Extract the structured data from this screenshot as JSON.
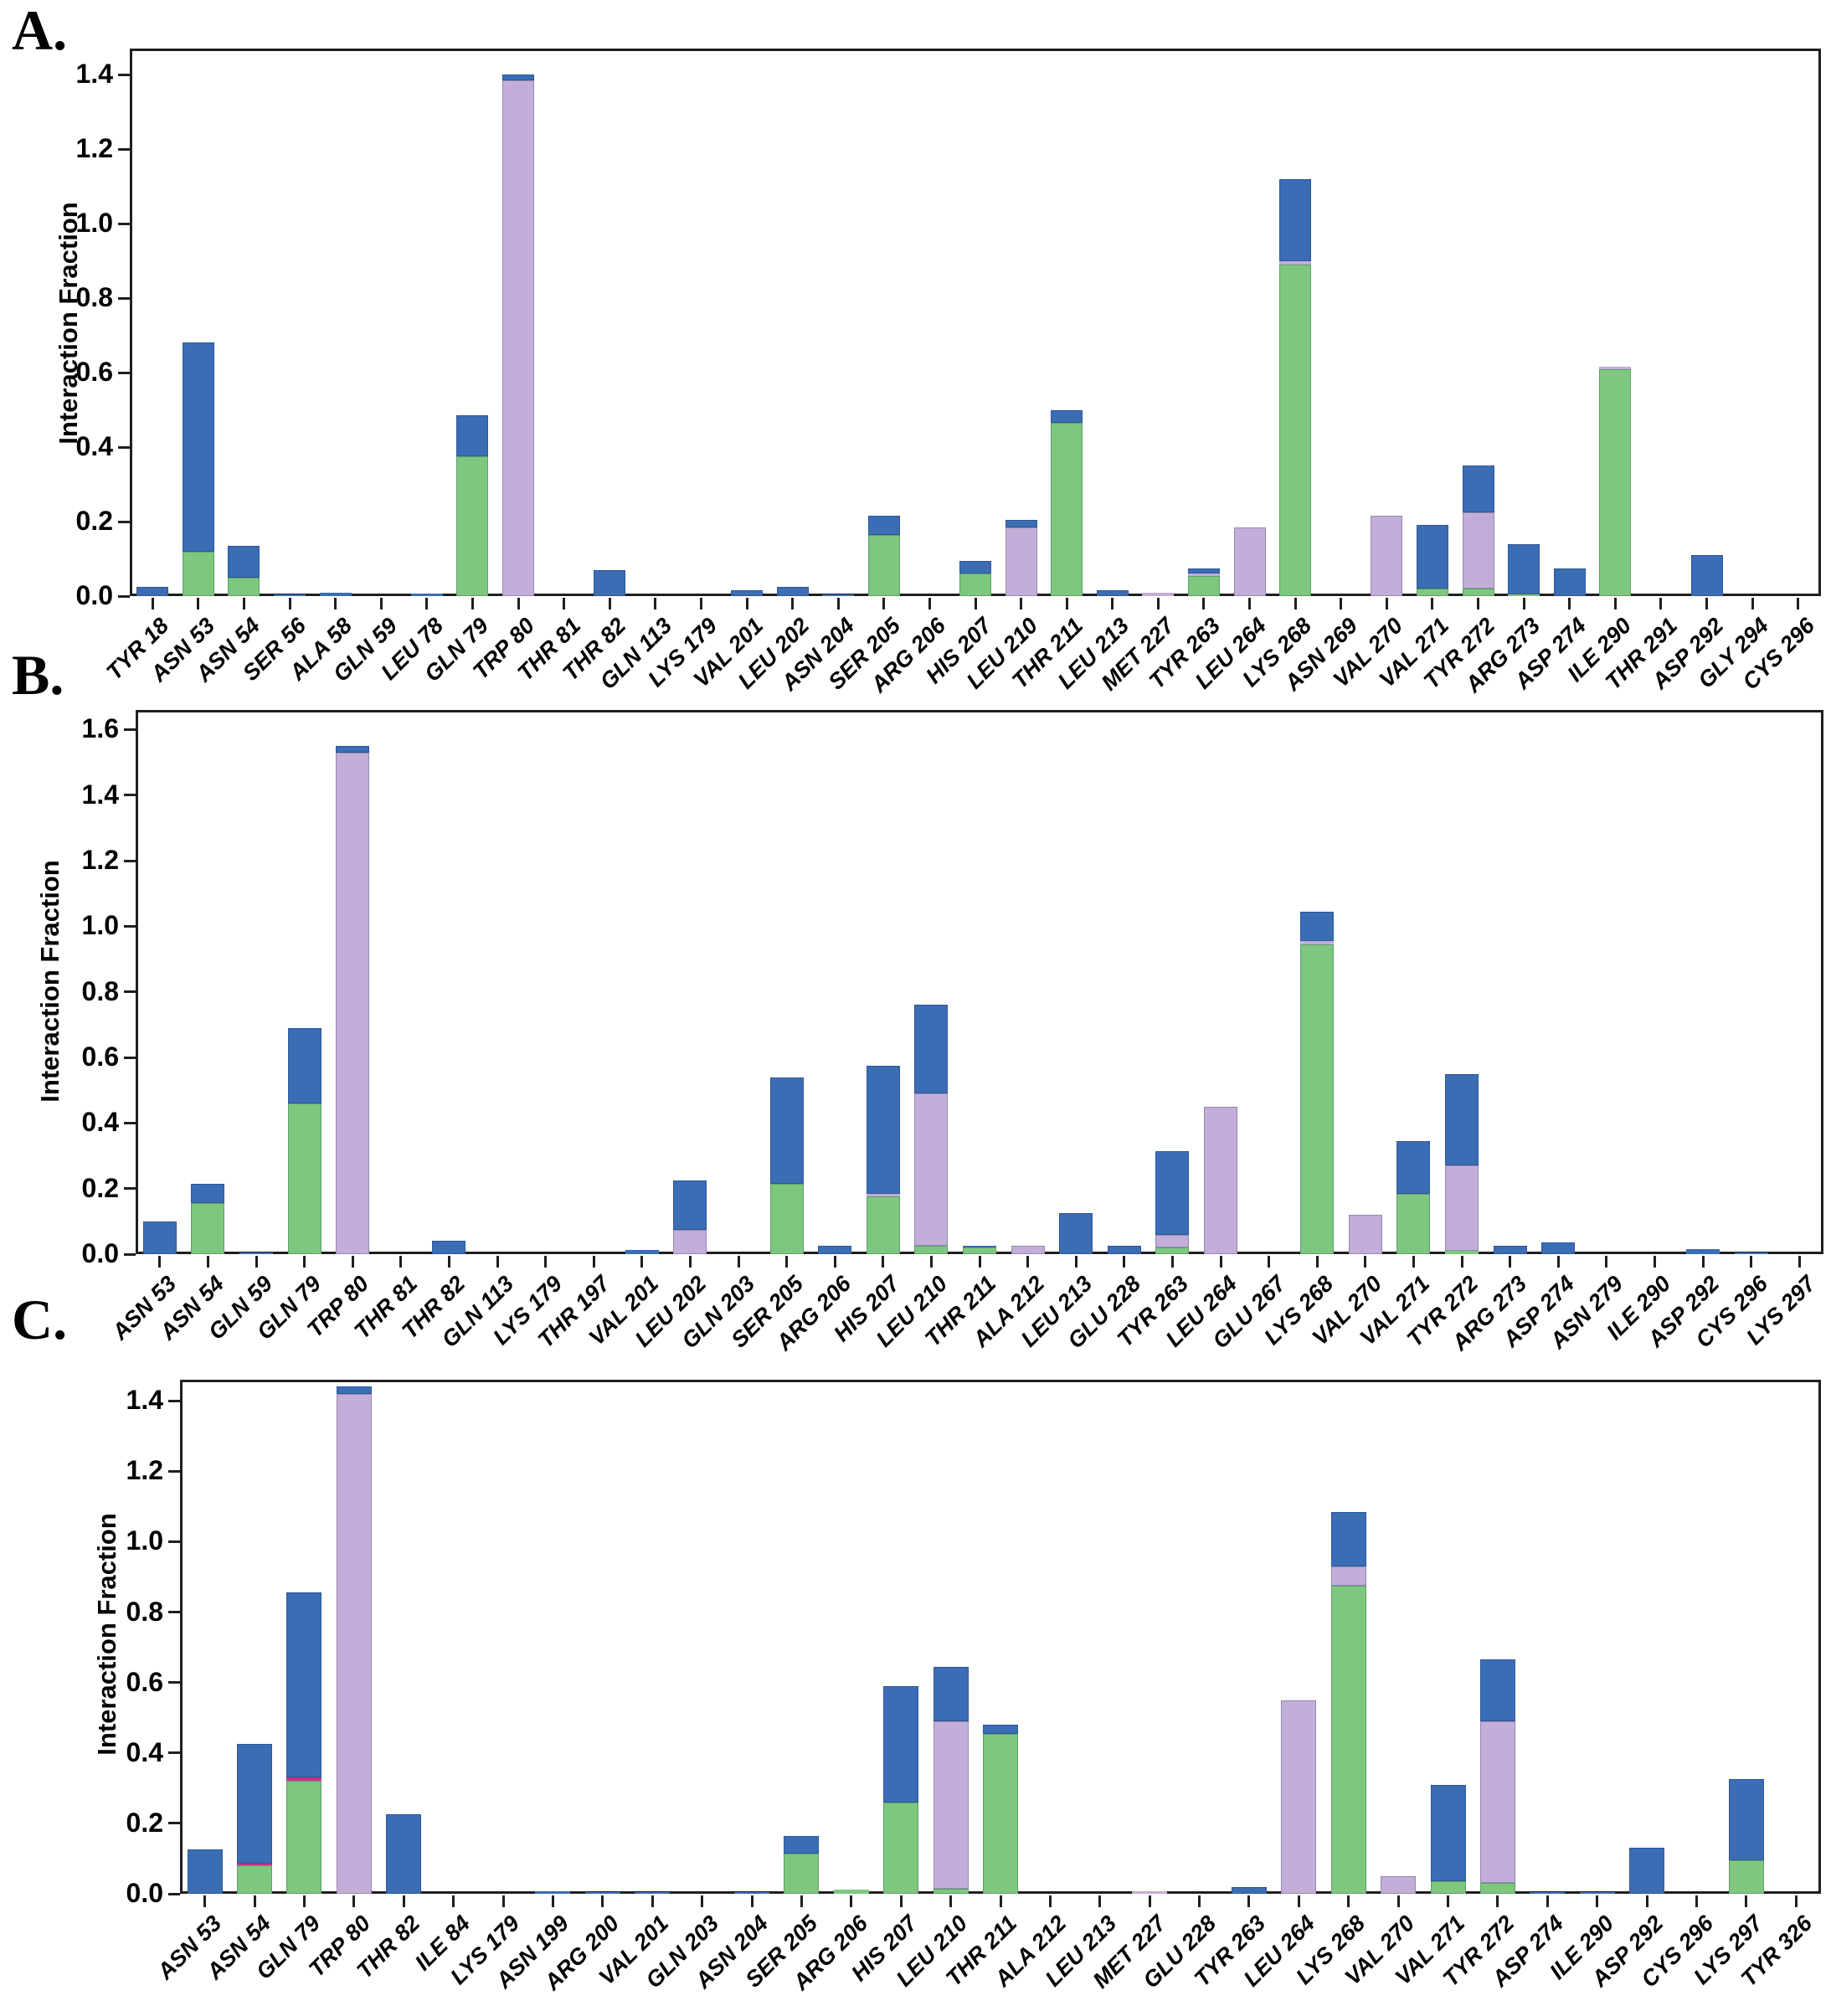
{
  "figure": {
    "ylabel": "Interaction Fraction",
    "colors": {
      "blue": "#3a6db4",
      "green": "#7dc87e",
      "lavender": "#c2aed8",
      "magenta": "#cc2e8e"
    }
  },
  "chart_data": [
    {
      "type": "bar",
      "stacked": true,
      "panel_label": "A.",
      "ylabel": "Interaction Fraction",
      "ylim": [
        0,
        1.47
      ],
      "yticks": [
        "0.0",
        "0.2",
        "0.4",
        "0.6",
        "0.8",
        "1.0",
        "1.2",
        "1.4"
      ],
      "grid": false,
      "legend": "none",
      "categories": [
        "TYR 18",
        "ASN 53",
        "ASN 54",
        "SER 56",
        "ALA 58",
        "GLN 59",
        "LEU 78",
        "GLN 79",
        "TRP 80",
        "THR 81",
        "THR 82",
        "GLN 113",
        "LYS 179",
        "VAL 201",
        "LEU 202",
        "ASN 204",
        "SER 205",
        "ARG 206",
        "HIS 207",
        "LEU 210",
        "THR 211",
        "LEU 213",
        "MET 227",
        "TYR 263",
        "LEU 264",
        "LYS 268",
        "ASN 269",
        "VAL 270",
        "VAL 271",
        "TYR 272",
        "ARG 273",
        "ASP 274",
        "ILE 290",
        "THR 291",
        "ASP 292",
        "GLY 294",
        "CYS 296"
      ],
      "series": [
        {
          "name": "green",
          "color": "#7dc87e",
          "values": [
            0,
            0.12,
            0.05,
            0,
            0,
            0,
            0,
            0.375,
            0,
            0,
            0,
            0,
            0,
            0,
            0,
            0,
            0.165,
            0,
            0.06,
            0,
            0.465,
            0,
            0,
            0.055,
            0,
            0.89,
            0,
            0,
            0.02,
            0.02,
            0.005,
            0,
            0.61,
            0,
            0,
            0,
            0
          ]
        },
        {
          "name": "lavender",
          "color": "#c2aed8",
          "values": [
            0,
            0,
            0,
            0,
            0,
            0,
            0,
            0,
            1.385,
            0,
            0,
            0,
            0,
            0,
            0,
            0,
            0,
            0,
            0,
            0.185,
            0,
            0,
            0.008,
            0.005,
            0.185,
            0.01,
            0,
            0.215,
            0,
            0.205,
            0,
            0,
            0.005,
            0,
            0,
            0,
            0
          ]
        },
        {
          "name": "blue",
          "color": "#3a6db4",
          "values": [
            0.025,
            0.56,
            0.085,
            0.005,
            0.008,
            0,
            0.006,
            0.11,
            0.015,
            0,
            0.07,
            0,
            0,
            0.015,
            0.025,
            0.005,
            0.05,
            0,
            0.035,
            0.02,
            0.035,
            0.015,
            0,
            0.015,
            0,
            0.22,
            0,
            0,
            0.17,
            0.125,
            0.135,
            0.075,
            0,
            0,
            0.11,
            0,
            0
          ]
        }
      ]
    },
    {
      "type": "bar",
      "stacked": true,
      "panel_label": "B.",
      "ylabel": "Interaction Fraction",
      "ylim": [
        0,
        1.66
      ],
      "yticks": [
        "0.0",
        "0.2",
        "0.4",
        "0.6",
        "0.8",
        "1.0",
        "1.2",
        "1.4",
        "1.6"
      ],
      "grid": false,
      "legend": "none",
      "categories": [
        "ASN 53",
        "ASN 54",
        "GLN 59",
        "GLN 79",
        "TRP 80",
        "THR 81",
        "THR 82",
        "GLN 113",
        "LYS 179",
        "THR 197",
        "VAL 201",
        "LEU 202",
        "GLN 203",
        "SER 205",
        "ARG 206",
        "HIS 207",
        "LEU 210",
        "THR 211",
        "ALA 212",
        "LEU 213",
        "GLU 228",
        "TYR 263",
        "LEU 264",
        "GLU 267",
        "LYS 268",
        "VAL 270",
        "VAL 271",
        "TYR 272",
        "ARG 273",
        "ASP 274",
        "ASN 279",
        "ILE 290",
        "ASP 292",
        "CYS 296",
        "LYS 297"
      ],
      "series": [
        {
          "name": "green",
          "color": "#7dc87e",
          "values": [
            0,
            0.155,
            0,
            0.46,
            0,
            0,
            0,
            0,
            0,
            0,
            0,
            0,
            0,
            0.215,
            0,
            0.175,
            0.025,
            0.02,
            0,
            0,
            0,
            0.02,
            0,
            0,
            0.945,
            0,
            0.185,
            0.01,
            0,
            0,
            0,
            0,
            0,
            0,
            0
          ]
        },
        {
          "name": "lavender",
          "color": "#c2aed8",
          "values": [
            0,
            0,
            0,
            0,
            1.53,
            0,
            0,
            0,
            0,
            0,
            0,
            0.075,
            0,
            0,
            0,
            0.01,
            0.465,
            0,
            0.025,
            0,
            0,
            0.04,
            0.45,
            0,
            0.01,
            0.12,
            0,
            0.26,
            0,
            0,
            0,
            0,
            0,
            0,
            0
          ]
        },
        {
          "name": "blue",
          "color": "#3a6db4",
          "values": [
            0.1,
            0.06,
            0.005,
            0.23,
            0.02,
            0,
            0.04,
            0,
            0,
            0,
            0.012,
            0.15,
            0,
            0.325,
            0.025,
            0.39,
            0.27,
            0.005,
            0,
            0.125,
            0.025,
            0.255,
            0,
            0,
            0.09,
            0,
            0.16,
            0.28,
            0.025,
            0.035,
            0,
            0,
            0.015,
            0.005,
            0
          ]
        }
      ]
    },
    {
      "type": "bar",
      "stacked": true,
      "panel_label": "C.",
      "ylabel": "Interaction Fraction",
      "ylim": [
        0,
        1.46
      ],
      "yticks": [
        "0.0",
        "0.2",
        "0.4",
        "0.6",
        "0.8",
        "1.0",
        "1.2",
        "1.4"
      ],
      "grid": false,
      "legend": "none",
      "categories": [
        "ASN 53",
        "ASN 54",
        "GLN 79",
        "TRP 80",
        "THR 82",
        "ILE 84",
        "LYS 179",
        "ASN 199",
        "ARG 200",
        "VAL 201",
        "GLN 203",
        "ASN 204",
        "SER 205",
        "ARG 206",
        "HIS 207",
        "LEU 210",
        "THR 211",
        "ALA 212",
        "LEU 213",
        "MET 227",
        "GLU 228",
        "TYR 263",
        "LEU 264",
        "LYS 268",
        "VAL 270",
        "VAL 271",
        "TYR 272",
        "ASP 274",
        "ILE 290",
        "ASP 292",
        "CYS 296",
        "LYS 297",
        "TYR 326"
      ],
      "series": [
        {
          "name": "green",
          "color": "#7dc87e",
          "values": [
            0,
            0.08,
            0.32,
            0,
            0,
            0,
            0,
            0,
            0,
            0,
            0,
            0,
            0.115,
            0.012,
            0.26,
            0.015,
            0.455,
            0,
            0,
            0,
            0,
            0,
            0,
            0.875,
            0,
            0.035,
            0.03,
            0,
            0,
            0,
            0,
            0.095,
            0
          ]
        },
        {
          "name": "magenta",
          "color": "#cc2e8e",
          "values": [
            0,
            0.005,
            0.01,
            0,
            0,
            0,
            0,
            0,
            0,
            0,
            0,
            0,
            0,
            0,
            0,
            0,
            0,
            0,
            0,
            0,
            0,
            0,
            0,
            0,
            0,
            0,
            0,
            0,
            0,
            0,
            0,
            0,
            0
          ]
        },
        {
          "name": "lavender",
          "color": "#c2aed8",
          "values": [
            0,
            0,
            0,
            1.42,
            0,
            0,
            0,
            0,
            0,
            0,
            0,
            0,
            0,
            0,
            0,
            0.475,
            0,
            0,
            0,
            0.006,
            0,
            0,
            0.55,
            0.055,
            0.05,
            0,
            0.46,
            0,
            0,
            0,
            0,
            0,
            0
          ]
        },
        {
          "name": "blue",
          "color": "#3a6db4",
          "values": [
            0.125,
            0.34,
            0.525,
            0.02,
            0.225,
            0,
            0,
            0.008,
            0.005,
            0.005,
            0,
            0.005,
            0.05,
            0,
            0.33,
            0.155,
            0.025,
            0,
            0,
            0,
            0,
            0.02,
            0,
            0.155,
            0,
            0.275,
            0.175,
            0.005,
            0.005,
            0.13,
            0,
            0.23,
            0
          ]
        }
      ]
    }
  ]
}
